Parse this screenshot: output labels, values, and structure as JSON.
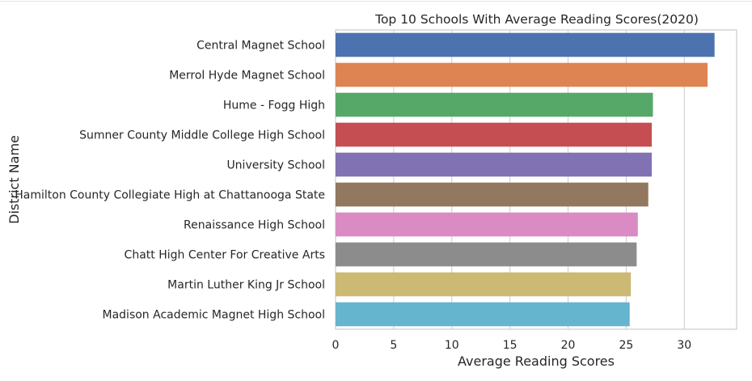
{
  "chart_data": {
    "type": "bar",
    "orientation": "horizontal",
    "title": "Top 10 Schools With Average Reading Scores(2020)",
    "xlabel": "Average Reading Scores",
    "ylabel": "District Name",
    "xlim": [
      0,
      34.5
    ],
    "xticks": [
      0,
      5,
      10,
      15,
      20,
      25,
      30
    ],
    "grid": true,
    "categories": [
      "Central Magnet School",
      "Merrol Hyde Magnet School",
      "Hume - Fogg High",
      "Sumner County Middle College High School",
      "University School",
      "Hamilton County Collegiate High at Chattanooga State",
      "Renaissance High School",
      "Chatt High Center For Creative Arts",
      "Martin Luther King Jr School",
      "Madison Academic Magnet High School"
    ],
    "values": [
      32.6,
      32.0,
      27.3,
      27.2,
      27.2,
      26.9,
      26.0,
      25.9,
      25.4,
      25.3
    ],
    "colors": [
      "#4c72b0",
      "#dd8452",
      "#55a868",
      "#c44e52",
      "#8172b3",
      "#937860",
      "#da8bc3",
      "#8c8c8c",
      "#ccb974",
      "#64b5cd"
    ]
  }
}
